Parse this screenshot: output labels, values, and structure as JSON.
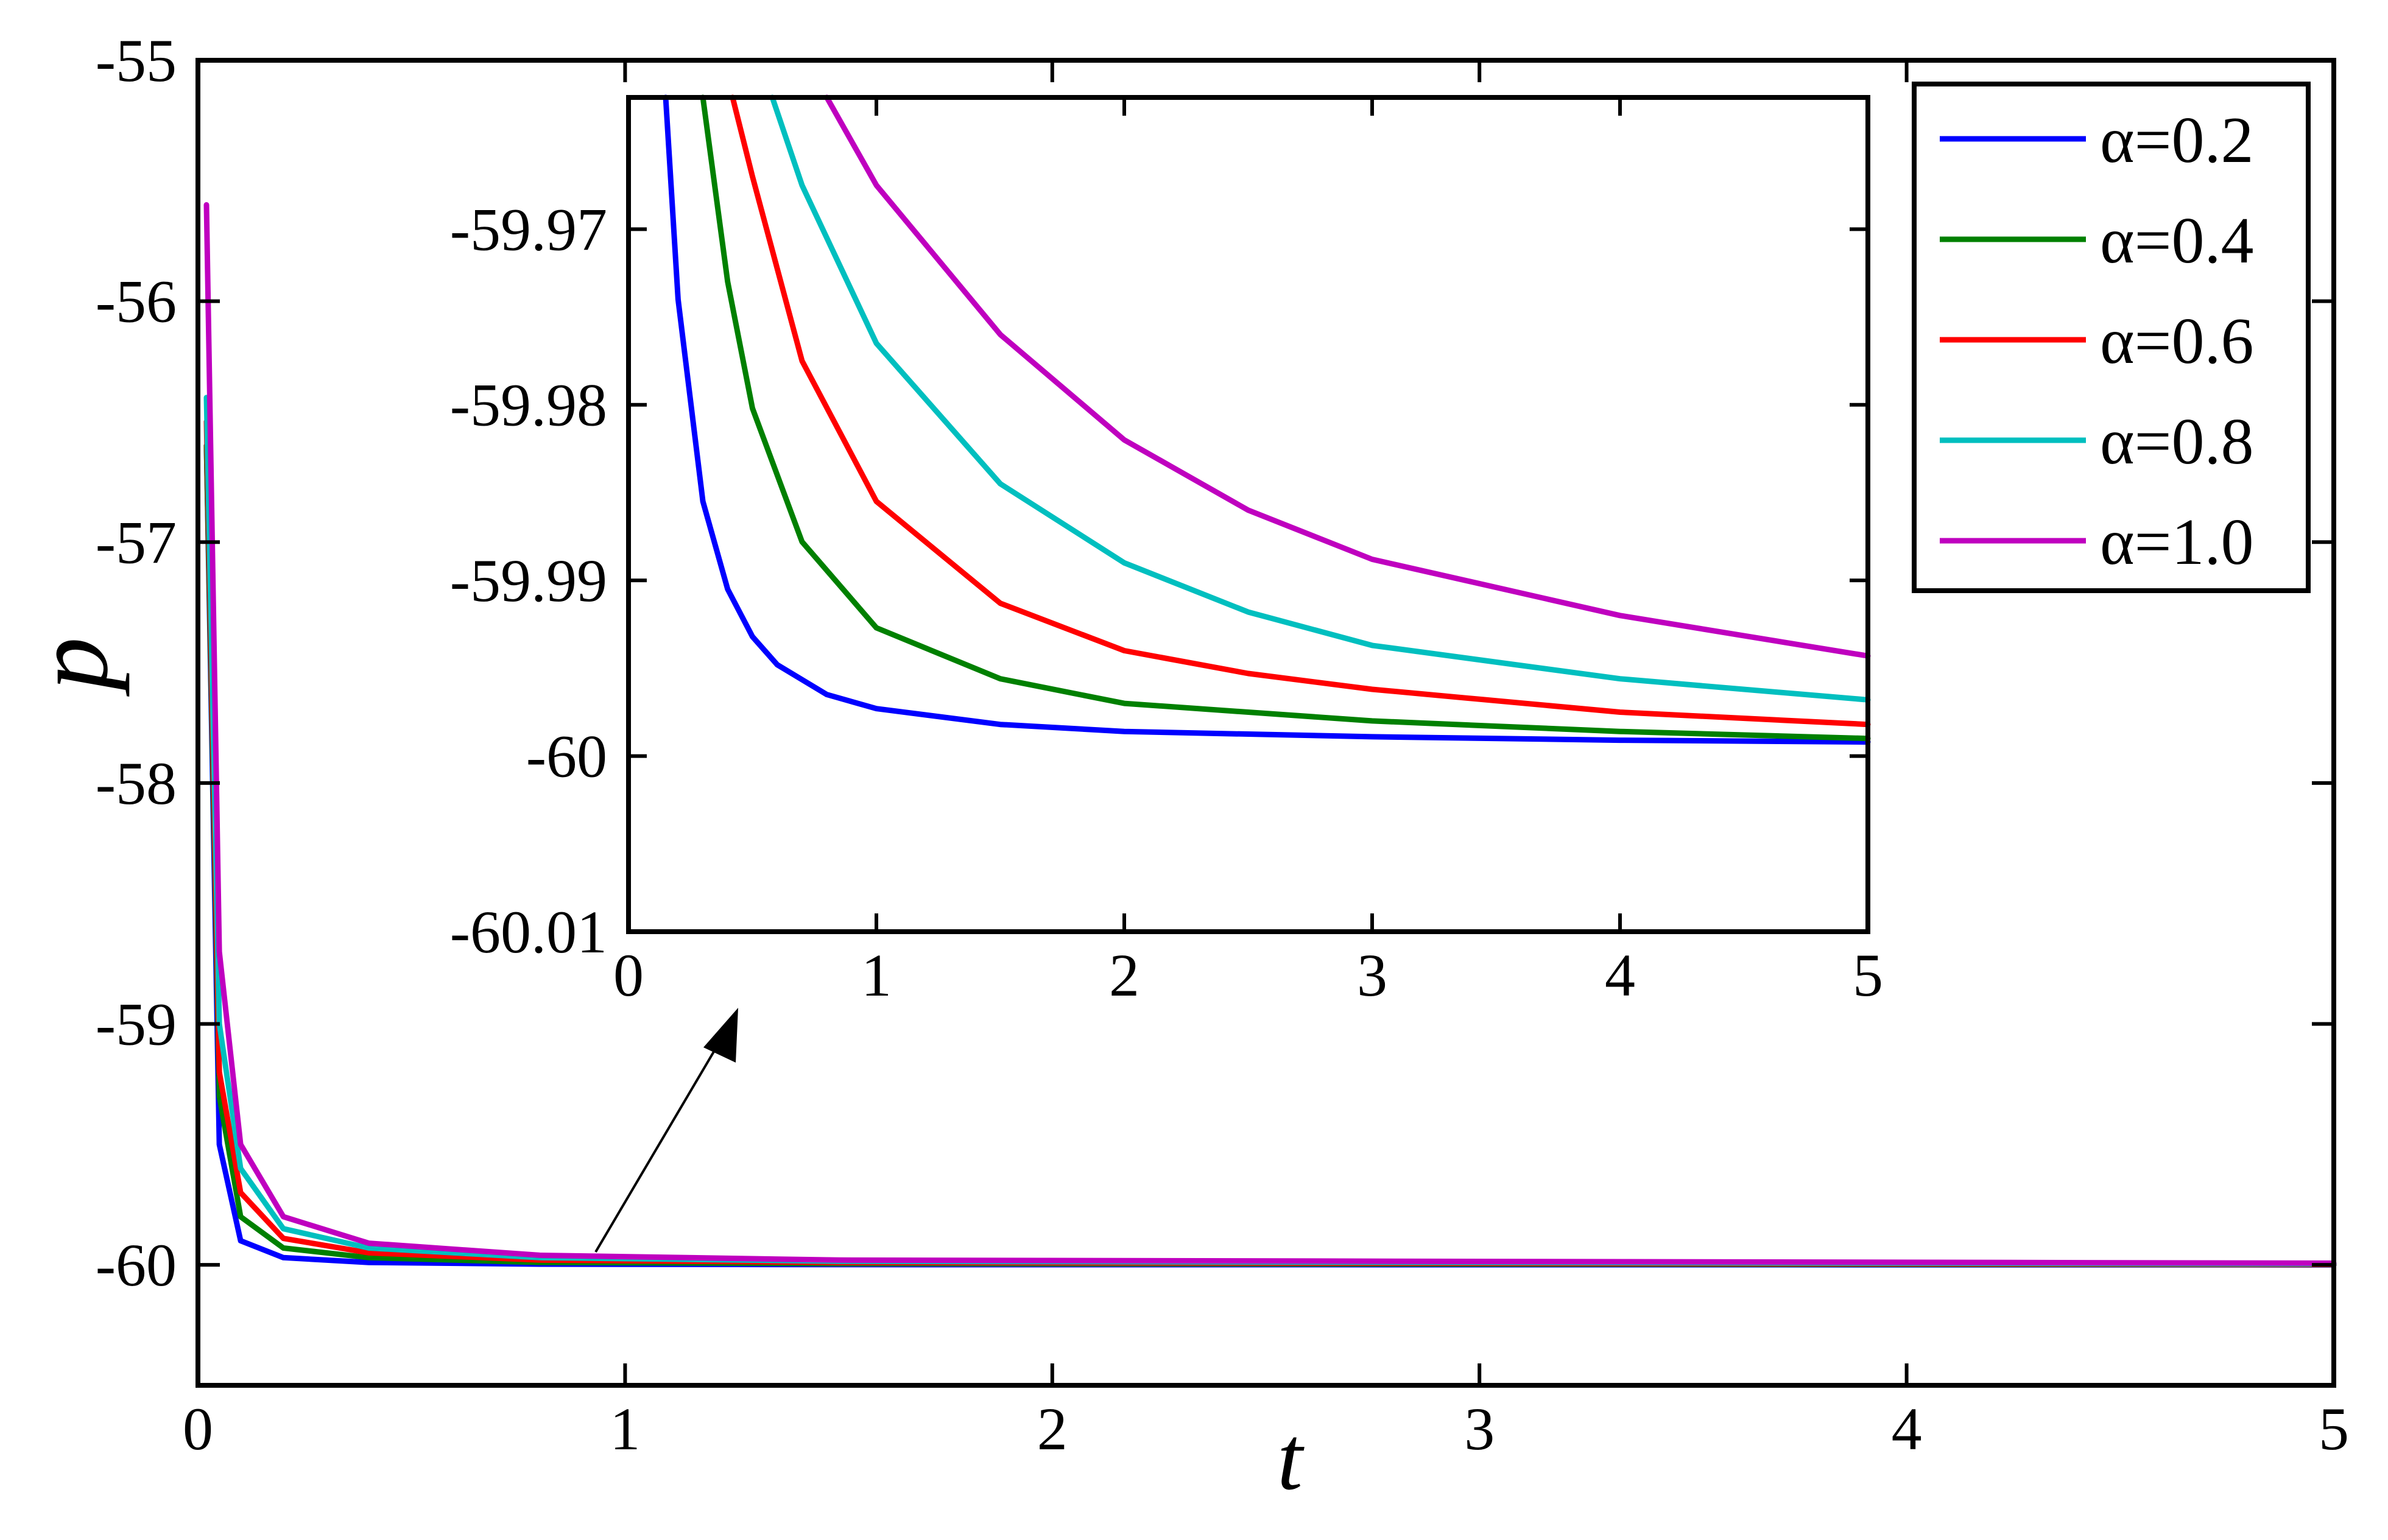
{
  "chart_data": [
    {
      "type": "line",
      "role": "main",
      "xlabel": "t",
      "ylabel": "p",
      "xlim": [
        0,
        5
      ],
      "ylim": [
        -60.5,
        -55
      ],
      "xticks": [
        "0",
        "1",
        "2",
        "3",
        "4",
        "5"
      ],
      "yticks": [
        "-55",
        "-56",
        "-57",
        "-58",
        "-59",
        "-60"
      ],
      "grid": false,
      "legend": "top-right",
      "series": [
        {
          "name": "α=0.2",
          "color": "#0000ff",
          "x": [
            0.02,
            0.05,
            0.1,
            0.2,
            0.4,
            0.8,
            1.5,
            5
          ],
          "y": [
            -56.6,
            -59.5,
            -59.9,
            -59.97,
            -59.99,
            -59.997,
            -59.999,
            -60.0
          ]
        },
        {
          "name": "α=0.4",
          "color": "#008000",
          "x": [
            0.02,
            0.05,
            0.1,
            0.2,
            0.4,
            0.8,
            1.5,
            5
          ],
          "y": [
            -56.6,
            -59.3,
            -59.8,
            -59.93,
            -59.97,
            -59.99,
            -59.995,
            -59.999
          ]
        },
        {
          "name": "α=0.6",
          "color": "#ff0000",
          "x": [
            0.02,
            0.05,
            0.1,
            0.2,
            0.4,
            0.8,
            1.5,
            5
          ],
          "y": [
            -56.5,
            -59.2,
            -59.7,
            -59.89,
            -59.95,
            -59.98,
            -59.99,
            -59.998
          ]
        },
        {
          "name": "α=0.8",
          "color": "#00bfbf",
          "x": [
            0.02,
            0.05,
            0.1,
            0.2,
            0.4,
            0.8,
            1.5,
            5
          ],
          "y": [
            -56.4,
            -59.0,
            -59.6,
            -59.85,
            -59.93,
            -59.97,
            -59.985,
            -59.996
          ]
        },
        {
          "name": "α=1.0",
          "color": "#bf00bf",
          "x": [
            0.02,
            0.05,
            0.1,
            0.2,
            0.4,
            0.8,
            1.5,
            5
          ],
          "y": [
            -55.6,
            -58.7,
            -59.5,
            -59.8,
            -59.91,
            -59.96,
            -59.98,
            -59.993
          ]
        }
      ]
    },
    {
      "type": "line",
      "role": "inset",
      "xlim": [
        0,
        5
      ],
      "ylim": [
        -60.01,
        -59.9625
      ],
      "xticks": [
        "0",
        "1",
        "2",
        "3",
        "4",
        "5"
      ],
      "yticks": [
        "-59.97",
        "-59.98",
        "-59.99",
        "-60",
        "-60.01"
      ],
      "series": [
        {
          "name": "α=0.2",
          "color": "#0000ff",
          "x": [
            0.15,
            0.2,
            0.3,
            0.4,
            0.5,
            0.6,
            0.8,
            1.0,
            1.5,
            2,
            3,
            4,
            5
          ],
          "y": [
            -59.9625,
            -59.974,
            -59.9855,
            -59.9905,
            -59.9932,
            -59.9948,
            -59.9965,
            -59.9973,
            -59.9982,
            -59.9986,
            -59.9989,
            -59.9991,
            -59.9992
          ]
        },
        {
          "name": "α=0.4",
          "color": "#008000",
          "x": [
            0.3,
            0.4,
            0.5,
            0.7,
            1.0,
            1.5,
            2,
            3,
            4,
            5
          ],
          "y": [
            -59.9625,
            -59.973,
            -59.9802,
            -59.9878,
            -59.9927,
            -59.9956,
            -59.997,
            -59.998,
            -59.9986,
            -59.999
          ]
        },
        {
          "name": "α=0.6",
          "color": "#ff0000",
          "x": [
            0.42,
            0.5,
            0.7,
            1.0,
            1.5,
            2,
            2.5,
            3,
            4,
            5
          ],
          "y": [
            -59.9625,
            -59.967,
            -59.9775,
            -59.9855,
            -59.9913,
            -59.994,
            -59.9953,
            -59.9962,
            -59.9975,
            -59.9982
          ]
        },
        {
          "name": "α=0.8",
          "color": "#00bfbf",
          "x": [
            0.58,
            0.7,
            1.0,
            1.5,
            2,
            2.5,
            3,
            4,
            5
          ],
          "y": [
            -59.9625,
            -59.9675,
            -59.9765,
            -59.9845,
            -59.989,
            -59.9918,
            -59.9937,
            -59.9956,
            -59.9968
          ]
        },
        {
          "name": "α=1.0",
          "color": "#bf00bf",
          "x": [
            0.8,
            1.0,
            1.5,
            2,
            2.5,
            3,
            4,
            5
          ],
          "y": [
            -59.9625,
            -59.9675,
            -59.976,
            -59.982,
            -59.986,
            -59.9888,
            -59.992,
            -59.9943
          ]
        }
      ]
    }
  ]
}
